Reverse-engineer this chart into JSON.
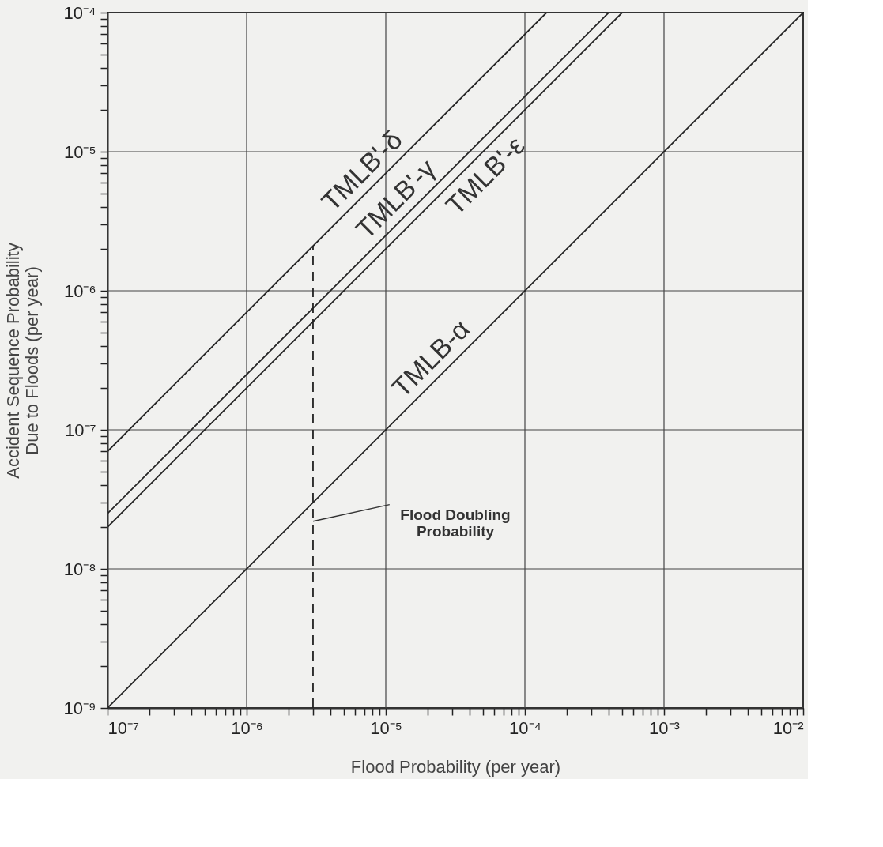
{
  "chart_data": {
    "type": "line",
    "xlabel": "Flood Probability  (per year)",
    "ylabel": "Accident Sequence Probability\nDue to Floods  (per year)",
    "log": "xy",
    "grid": true,
    "line_style": "solid",
    "marker": "none",
    "xlim": [
      1e-07,
      0.01
    ],
    "ylim": [
      1e-09,
      0.0001
    ],
    "xticks": [
      {
        "value": 1e-07,
        "label": "10⁻⁷"
      },
      {
        "value": 2e-07,
        "label": null
      },
      {
        "value": 3e-07,
        "label": null
      },
      {
        "value": 4e-07,
        "label": null
      },
      {
        "value": 5e-07,
        "label": null
      },
      {
        "value": 6e-07,
        "label": null
      },
      {
        "value": 7e-07,
        "label": null
      },
      {
        "value": 8e-07,
        "label": null
      },
      {
        "value": 9e-07,
        "label": null
      },
      {
        "value": 1e-06,
        "label": "10⁻⁶"
      },
      {
        "value": 2e-06,
        "label": null
      },
      {
        "value": 3e-06,
        "label": null
      },
      {
        "value": 4e-06,
        "label": null
      },
      {
        "value": 5e-06,
        "label": null
      },
      {
        "value": 6e-06,
        "label": null
      },
      {
        "value": 7e-06,
        "label": null
      },
      {
        "value": 8e-06,
        "label": null
      },
      {
        "value": 9e-06,
        "label": null
      },
      {
        "value": 1e-05,
        "label": "10⁻⁵"
      },
      {
        "value": 2e-05,
        "label": null
      },
      {
        "value": 3e-05,
        "label": null
      },
      {
        "value": 4e-05,
        "label": null
      },
      {
        "value": 5e-05,
        "label": null
      },
      {
        "value": 6e-05,
        "label": null
      },
      {
        "value": 7e-05,
        "label": null
      },
      {
        "value": 8e-05,
        "label": null
      },
      {
        "value": 9e-05,
        "label": null
      },
      {
        "value": 0.0001,
        "label": "10⁻⁴"
      },
      {
        "value": 0.0002,
        "label": null
      },
      {
        "value": 0.0003,
        "label": null
      },
      {
        "value": 0.0004,
        "label": null
      },
      {
        "value": 0.0005,
        "label": null
      },
      {
        "value": 0.0006,
        "label": null
      },
      {
        "value": 0.0007,
        "label": null
      },
      {
        "value": 0.0008,
        "label": null
      },
      {
        "value": 0.0009,
        "label": null
      },
      {
        "value": 0.001,
        "label": "10⁻³"
      },
      {
        "value": 0.002,
        "label": null
      },
      {
        "value": 0.003,
        "label": null
      },
      {
        "value": 0.004,
        "label": null
      },
      {
        "value": 0.005,
        "label": null
      },
      {
        "value": 0.006,
        "label": null
      },
      {
        "value": 0.007,
        "label": null
      },
      {
        "value": 0.008,
        "label": null
      },
      {
        "value": 0.009,
        "label": null
      },
      {
        "value": 0.01,
        "label": "10⁻²"
      }
    ],
    "yticks": [
      {
        "value": 1e-09,
        "label": "10⁻⁹"
      },
      {
        "value": 2e-09,
        "label": null
      },
      {
        "value": 3e-09,
        "label": null
      },
      {
        "value": 4e-09,
        "label": null
      },
      {
        "value": 5e-09,
        "label": null
      },
      {
        "value": 6e-09,
        "label": null
      },
      {
        "value": 7e-09,
        "label": null
      },
      {
        "value": 8e-09,
        "label": null
      },
      {
        "value": 9e-09,
        "label": null
      },
      {
        "value": 1e-08,
        "label": "10⁻⁸"
      },
      {
        "value": 2e-08,
        "label": null
      },
      {
        "value": 3e-08,
        "label": null
      },
      {
        "value": 4e-08,
        "label": null
      },
      {
        "value": 5e-08,
        "label": null
      },
      {
        "value": 6e-08,
        "label": null
      },
      {
        "value": 7e-08,
        "label": null
      },
      {
        "value": 8e-08,
        "label": null
      },
      {
        "value": 9e-08,
        "label": null
      },
      {
        "value": 1e-07,
        "label": "10⁻⁷"
      },
      {
        "value": 2e-07,
        "label": null
      },
      {
        "value": 3e-07,
        "label": null
      },
      {
        "value": 4e-07,
        "label": null
      },
      {
        "value": 5e-07,
        "label": null
      },
      {
        "value": 6e-07,
        "label": null
      },
      {
        "value": 7e-07,
        "label": null
      },
      {
        "value": 8e-07,
        "label": null
      },
      {
        "value": 9e-07,
        "label": null
      },
      {
        "value": 1e-06,
        "label": "10⁻⁶"
      },
      {
        "value": 2e-06,
        "label": null
      },
      {
        "value": 3e-06,
        "label": null
      },
      {
        "value": 4e-06,
        "label": null
      },
      {
        "value": 5e-06,
        "label": null
      },
      {
        "value": 6e-06,
        "label": null
      },
      {
        "value": 7e-06,
        "label": null
      },
      {
        "value": 8e-06,
        "label": null
      },
      {
        "value": 9e-06,
        "label": null
      },
      {
        "value": 1e-05,
        "label": "10⁻⁵"
      },
      {
        "value": 2e-05,
        "label": null
      },
      {
        "value": 3e-05,
        "label": null
      },
      {
        "value": 4e-05,
        "label": null
      },
      {
        "value": 5e-05,
        "label": null
      },
      {
        "value": 6e-05,
        "label": null
      },
      {
        "value": 7e-05,
        "label": null
      },
      {
        "value": 8e-05,
        "label": null
      },
      {
        "value": 9e-05,
        "label": null
      },
      {
        "value": 0.0001,
        "label": "10⁻⁴"
      }
    ],
    "series": [
      {
        "color": "#222222",
        "x": [
          1e-07,
          0.000143
        ],
        "values": [
          7e-08,
          0.0001
        ]
      },
      {
        "color": "#222222",
        "x": [
          1e-07,
          0.0004
        ],
        "values": [
          2.5e-08,
          0.0001
        ]
      },
      {
        "color": "#222222",
        "x": [
          1e-07,
          0.0005
        ],
        "values": [
          2e-08,
          0.0001
        ]
      },
      {
        "color": "#222222",
        "x": [
          1e-07,
          0.01
        ],
        "values": [
          1e-09,
          0.0001
        ]
      },
      {
        "color": "#222222",
        "line_style": "dashed",
        "x": [
          3e-06,
          3e-06
        ],
        "values": [
          1e-09,
          2.1e-06
        ]
      }
    ],
    "annotations": [
      {
        "text": "TMLB'-δ",
        "x": 8e-06,
        "y": 5.6e-06
      },
      {
        "text": "TMLB'-γ",
        "x": 1.4e-05,
        "y": 3.5e-06
      },
      {
        "text": "TMLB'-ε",
        "x": 4.5e-05,
        "y": 9e-06
      },
      {
        "text": "TMLB-α",
        "x": 2.5e-05,
        "y": 2.5e-07
      },
      {
        "text": "Flood Doubling\nProbability",
        "x": 3e-06,
        "y": 2.2e-08
      }
    ]
  }
}
